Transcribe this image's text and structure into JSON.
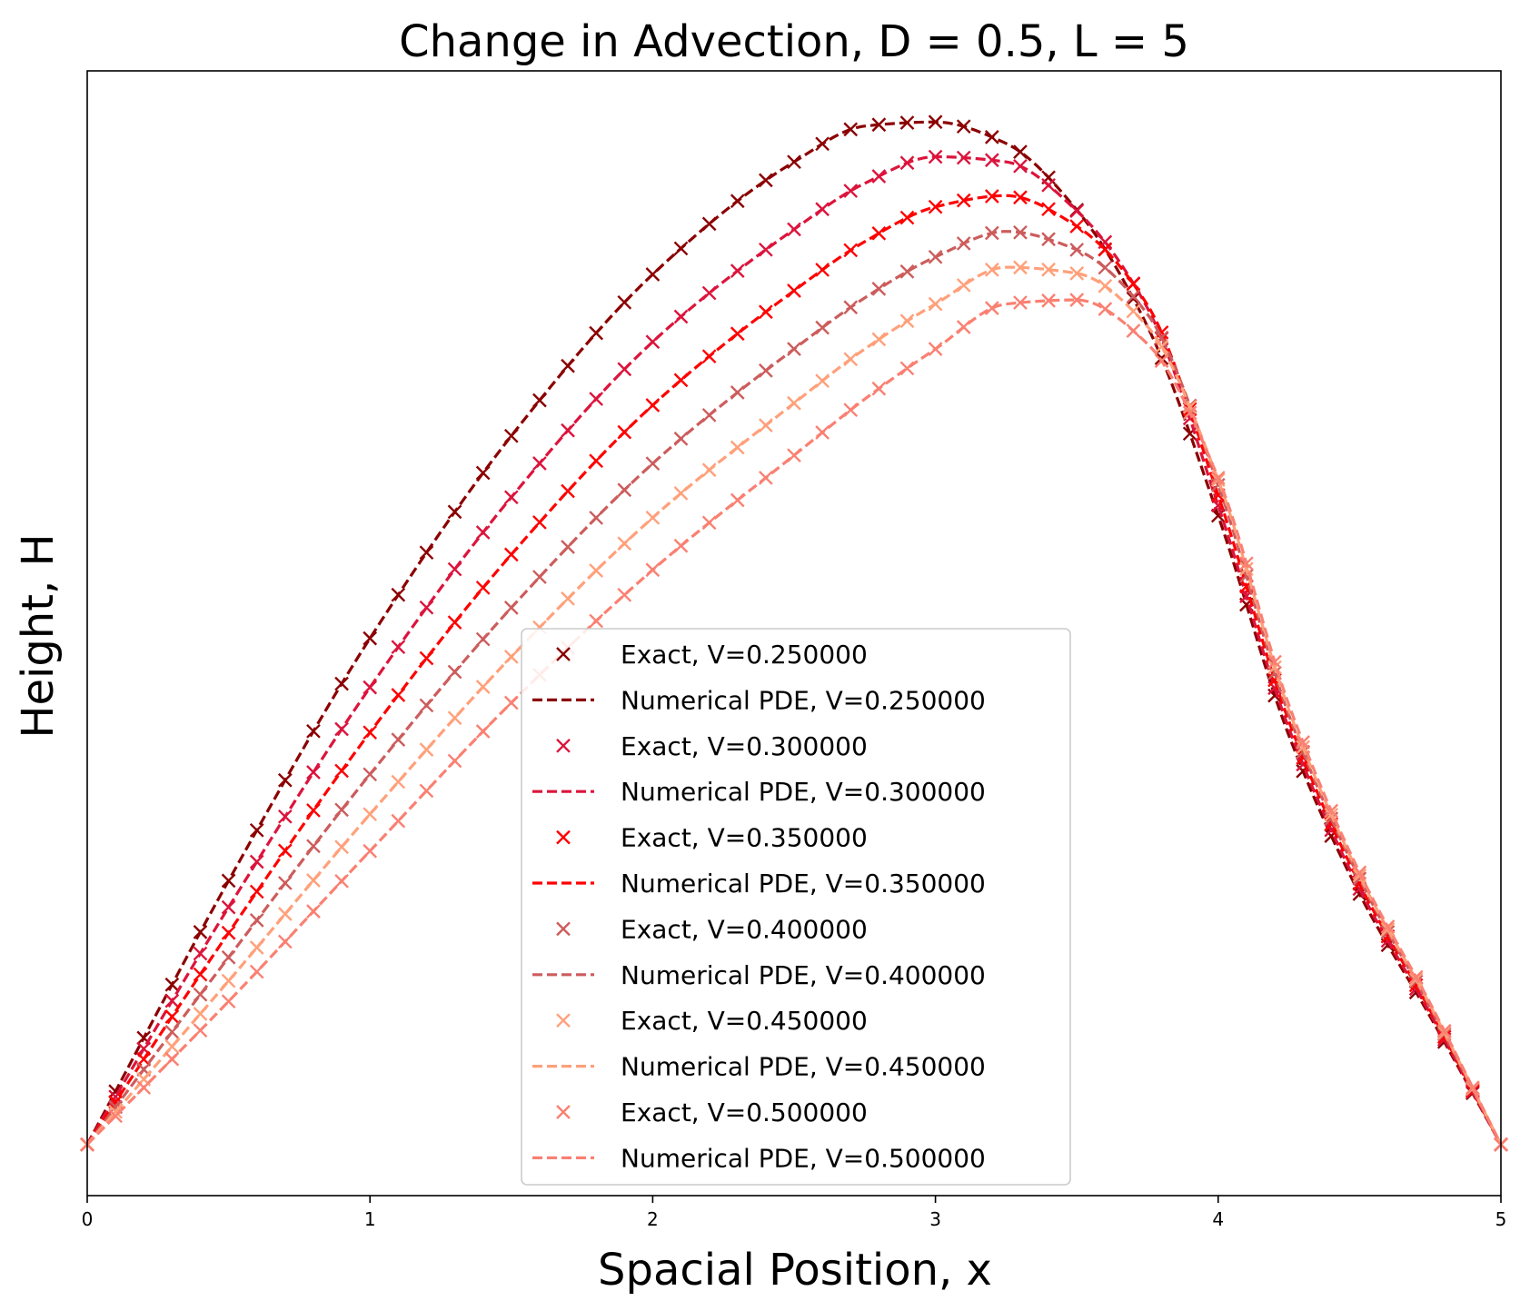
{
  "chart_data": {
    "type": "line",
    "title": "Change in Advection, D = 0.5, L = 5",
    "xlabel": "Spacial Position, x",
    "ylabel": "Height, H",
    "xlim": [
      0,
      5
    ],
    "ylim": [
      -0.05,
      1.05
    ],
    "xticks": [
      0,
      1,
      2,
      3,
      4,
      5
    ],
    "yticks_visible": false,
    "grid": false,
    "legend_position": "lower-center",
    "series": [
      {
        "v": 0.25,
        "color": "#8b0000",
        "exact_label": "Exact, V=0.250000",
        "numerical_label": "Numerical PDE, V=0.250000",
        "x": [
          0,
          0.5,
          1,
          1.5,
          2,
          2.5,
          2.75,
          3,
          3.25,
          3.5,
          3.75,
          4,
          4.25,
          4.5,
          4.75,
          5
        ],
        "y": [
          0,
          0.258,
          0.495,
          0.693,
          0.851,
          0.961,
          0.996,
          1.0,
          0.979,
          0.914,
          0.8,
          0.615,
          0.4,
          0.245,
          0.125,
          0
        ]
      },
      {
        "v": 0.3,
        "color": "#dc143c",
        "exact_label": "Exact, V=0.300000",
        "numerical_label": "Numerical PDE, V=0.300000",
        "x": [
          0,
          0.5,
          1,
          1.5,
          2,
          2.5,
          2.75,
          3,
          3.25,
          3.5,
          3.75,
          4,
          4.25,
          4.5,
          4.75,
          5
        ],
        "y": [
          0,
          0.232,
          0.447,
          0.633,
          0.785,
          0.895,
          0.94,
          0.966,
          0.961,
          0.913,
          0.818,
          0.625,
          0.407,
          0.25,
          0.128,
          0
        ]
      },
      {
        "v": 0.35,
        "color": "#ff0000",
        "exact_label": "Exact, V=0.350000",
        "numerical_label": "Numerical PDE, V=0.350000",
        "x": [
          0,
          0.5,
          1,
          1.5,
          2,
          2.5,
          2.75,
          3,
          3.25,
          3.5,
          3.75,
          4,
          4.25,
          4.5,
          4.75,
          5
        ],
        "y": [
          0,
          0.207,
          0.403,
          0.577,
          0.723,
          0.835,
          0.883,
          0.917,
          0.928,
          0.898,
          0.821,
          0.635,
          0.414,
          0.255,
          0.131,
          0
        ]
      },
      {
        "v": 0.4,
        "color": "#cd5c5c",
        "exact_label": "Exact, V=0.400000",
        "numerical_label": "Numerical PDE, V=0.400000",
        "x": [
          0,
          0.5,
          1,
          1.5,
          2,
          2.5,
          2.75,
          3,
          3.25,
          3.5,
          3.75,
          4,
          4.25,
          4.5,
          4.75,
          5
        ],
        "y": [
          0,
          0.183,
          0.362,
          0.525,
          0.666,
          0.778,
          0.828,
          0.868,
          0.893,
          0.875,
          0.812,
          0.645,
          0.42,
          0.26,
          0.134,
          0
        ]
      },
      {
        "v": 0.45,
        "color": "#ffa07a",
        "exact_label": "Exact, V=0.450000",
        "numerical_label": "Numerical PDE, V=0.450000",
        "x": [
          0,
          0.5,
          1,
          1.5,
          2,
          2.5,
          2.75,
          3,
          3.25,
          3.5,
          3.75,
          4,
          4.25,
          4.5,
          4.75,
          5
        ],
        "y": [
          0,
          0.16,
          0.323,
          0.477,
          0.613,
          0.725,
          0.778,
          0.822,
          0.858,
          0.852,
          0.8,
          0.65,
          0.425,
          0.263,
          0.136,
          0
        ]
      },
      {
        "v": 0.5,
        "color": "#fa8072",
        "exact_label": "Exact, V=0.500000",
        "numerical_label": "Numerical PDE, V=0.500000",
        "x": [
          0,
          0.5,
          1,
          1.5,
          2,
          2.5,
          2.75,
          3,
          3.25,
          3.5,
          3.75,
          4,
          4.25,
          4.5,
          4.75,
          5
        ],
        "y": [
          0,
          0.14,
          0.287,
          0.432,
          0.562,
          0.674,
          0.729,
          0.778,
          0.822,
          0.826,
          0.783,
          0.652,
          0.43,
          0.266,
          0.138,
          0
        ]
      }
    ]
  }
}
